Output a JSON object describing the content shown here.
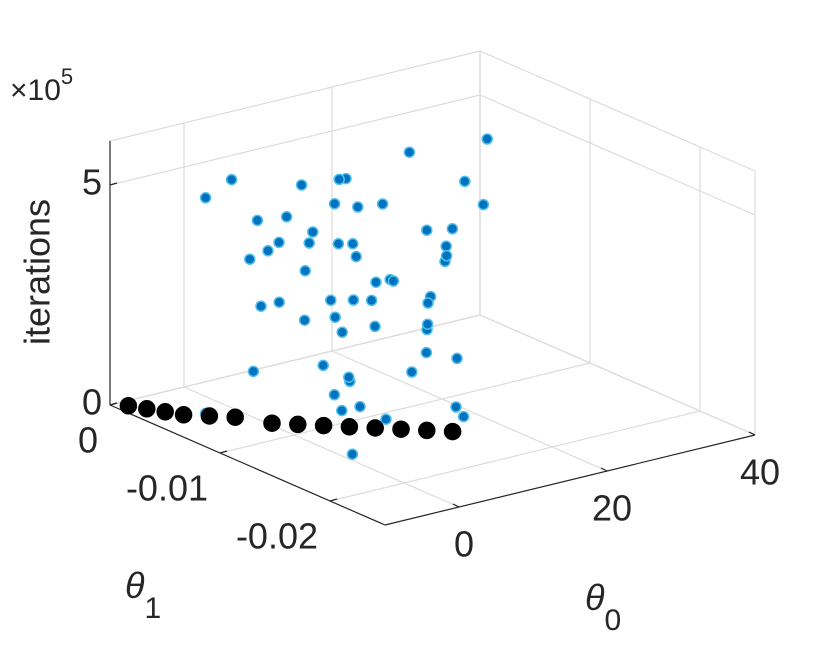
{
  "chart_data": {
    "type": "scatter3d",
    "xlabel": {
      "symbol": "θ",
      "subscript": "0"
    },
    "ylabel": {
      "symbol": "θ",
      "subscript": "1"
    },
    "zlabel": "iterations",
    "z_multiplier": {
      "base": "×10",
      "exponent": "5"
    },
    "xlim": [
      -10,
      40
    ],
    "xticks": [
      0,
      20,
      40
    ],
    "ylim": [
      -0.025,
      0
    ],
    "yticks": [
      0,
      -0.01,
      -0.02
    ],
    "zlim": [
      0,
      6
    ],
    "zticks": [
      0,
      5
    ],
    "grid": true,
    "series": [
      {
        "color": "#0072bd",
        "edgecolor": "#4dbeee",
        "x": [
          -6,
          -5,
          -4,
          -3,
          -2,
          -1,
          0,
          1,
          2,
          3,
          4,
          5,
          6,
          7,
          8,
          9,
          10,
          11,
          12,
          13,
          14,
          15,
          -6,
          -4,
          -2,
          0,
          2,
          4,
          6,
          8,
          10,
          12,
          14,
          -5,
          -3,
          -1,
          1,
          3,
          5,
          7,
          9,
          11,
          13,
          -6,
          -2,
          2,
          6,
          10,
          18,
          20,
          22,
          24,
          26,
          28,
          30,
          32,
          34,
          36,
          38,
          25
        ],
        "y": [
          -0.006,
          -0.012,
          -0.018,
          -0.008,
          -0.014,
          -0.01,
          -0.016,
          -0.006,
          -0.012,
          -0.018,
          -0.008,
          -0.014,
          -0.01,
          -0.016,
          -0.006,
          -0.012,
          -0.018,
          -0.008,
          -0.014,
          -0.01,
          -0.016,
          -0.012,
          -0.015,
          -0.009,
          -0.017,
          -0.007,
          -0.013,
          -0.011,
          -0.015,
          -0.009,
          -0.017,
          -0.007,
          -0.013,
          -0.011,
          -0.017,
          -0.005,
          -0.013,
          -0.009,
          -0.015,
          -0.007,
          -0.011,
          -0.017,
          -0.005,
          -0.006,
          -0.01,
          -0.014,
          -0.018,
          -0.008,
          -0.002,
          -0.004,
          -0.001,
          -0.006,
          -0.003,
          -0.005,
          -0.002,
          -0.004,
          -0.001,
          -0.003,
          -0.002,
          -0.008
        ],
        "z": [
          5.2,
          4.8,
          0.6,
          3.9,
          2.1,
          5.0,
          1.3,
          4.4,
          3.2,
          0.9,
          5.3,
          2.7,
          4.1,
          1.8,
          3.6,
          5.1,
          1.1,
          2.4,
          4.6,
          3.0,
          0.5,
          2.0,
          3.4,
          1.5,
          4.9,
          2.6,
          0.8,
          5.2,
          3.8,
          1.9,
          4.3,
          0.4,
          2.9,
          4.5,
          2.2,
          5.3,
          1.2,
          3.5,
          0.7,
          4.0,
          2.8,
          5.0,
          1.6,
          0.3,
          3.1,
          4.7,
          2.5,
          5.2,
          4.2,
          2.0,
          3.3,
          1.1,
          4.6,
          2.6,
          0.9,
          3.8,
          1.7,
          3.0,
          4.3,
          0.5
        ]
      },
      {
        "color": "#000000",
        "edgecolor": "#000000",
        "x": [
          -9,
          -8,
          -7,
          -6,
          -4,
          -2,
          0,
          2,
          4,
          6,
          8,
          10,
          12,
          14
        ],
        "y": [
          -0.001,
          -0.002,
          -0.003,
          -0.004,
          -0.005,
          -0.006,
          -0.008,
          -0.009,
          -0.01,
          -0.011,
          -0.012,
          -0.013,
          -0.014,
          -0.015
        ],
        "z": [
          0.05,
          0.05,
          0.05,
          0.05,
          0.05,
          0.05,
          0.05,
          0.05,
          0.05,
          0.05,
          0.05,
          0.05,
          0.05,
          0.05
        ]
      }
    ]
  }
}
